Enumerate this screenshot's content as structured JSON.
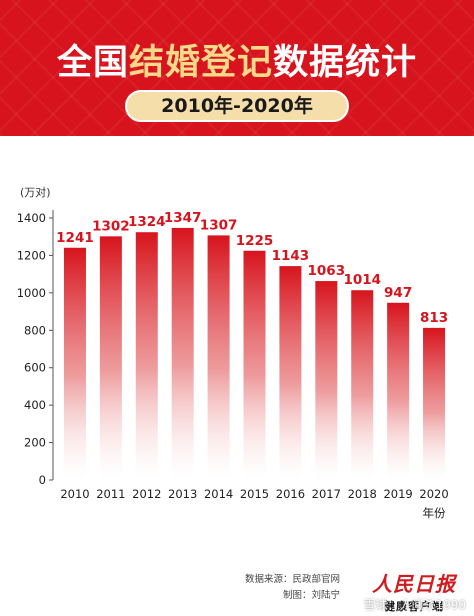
{
  "header": {
    "title_part1": "全国",
    "title_highlight": "结婚登记",
    "title_part2": "数据统计",
    "period": "2010年-2020年"
  },
  "chart_data": {
    "type": "bar",
    "categories": [
      "2010",
      "2011",
      "2012",
      "2013",
      "2014",
      "2015",
      "2016",
      "2017",
      "2018",
      "2019",
      "2020"
    ],
    "values": [
      1241,
      1302,
      1324,
      1347,
      1307,
      1225,
      1143,
      1063,
      1014,
      947,
      813
    ],
    "data_labels": [
      "1241",
      "1302",
      "1324",
      "1347",
      "1307",
      "1225",
      "1143",
      "1063",
      "1014",
      "947",
      "813"
    ],
    "yticks": [
      0,
      200,
      400,
      600,
      800,
      1000,
      1200,
      1400
    ],
    "ylim": [
      0,
      1400
    ],
    "yunit": "(万对)",
    "xunit": "年份",
    "bar_color_top": "#d7141d",
    "bar_color_bottom": "#ffffff",
    "label_color": "#d7141d"
  },
  "footer": {
    "source": "数据来源：民政部官网",
    "author": "制图：刘陆宁",
    "brand_name": "人民日报",
    "brand_sub": "健康客户端",
    "watermark": "雪球：人间杀1990"
  }
}
